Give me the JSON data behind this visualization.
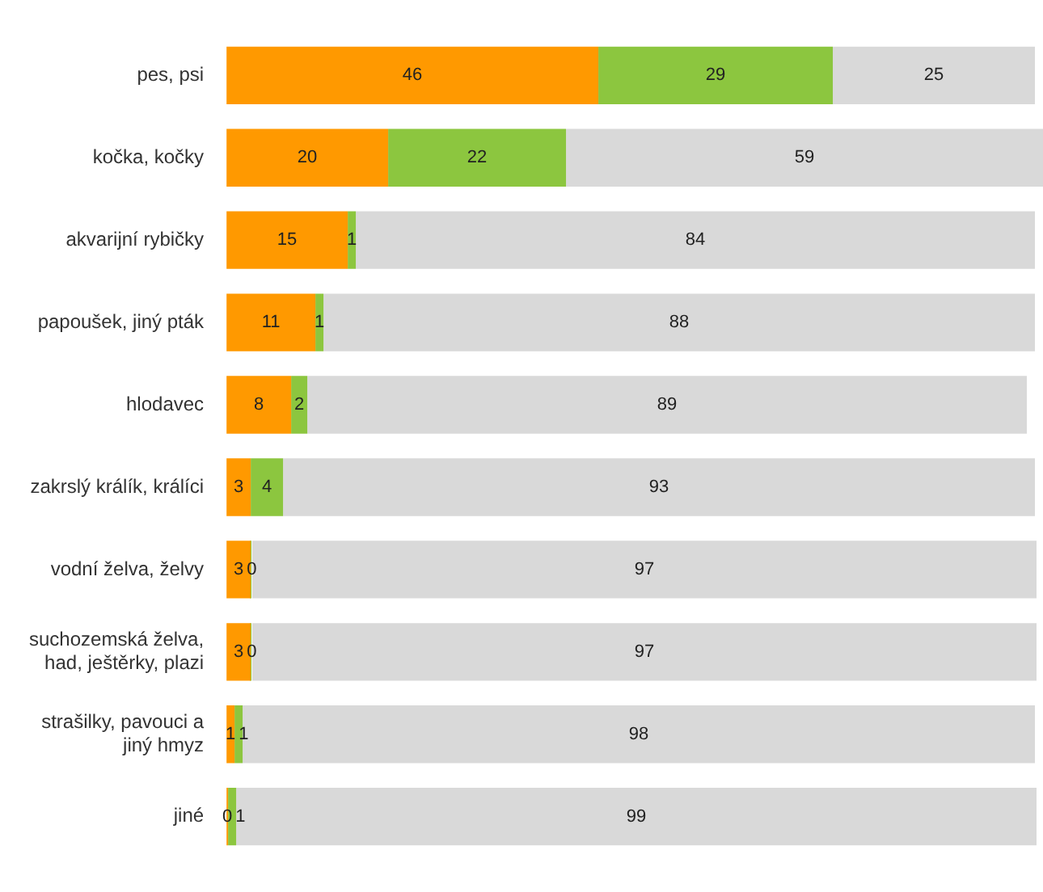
{
  "chart_data": {
    "type": "bar",
    "orientation": "horizontal",
    "stacked": true,
    "data_labels": true,
    "tick_labels": "y",
    "grid": false,
    "legend": false,
    "xlim": [
      0,
      101
    ],
    "categories": [
      "pes, psi",
      "kočka, kočky",
      "akvarijní rybičky",
      "papoušek, jiný pták",
      "hlodavec",
      "zakrslý králík, králíci",
      "vodní želva, želvy",
      "suchozemská želva,\nhad, ještěrky, plazi",
      "strašilky, pavouci a\njiný hmyz",
      "jiné"
    ],
    "series": [
      {
        "color": "#ff9900",
        "values": [
          46,
          20,
          15,
          11,
          8,
          3,
          3,
          3,
          1,
          0
        ]
      },
      {
        "color": "#8cc63f",
        "values": [
          29,
          22,
          1,
          1,
          2,
          4,
          0,
          0,
          1,
          1
        ]
      },
      {
        "color": "#d9d9d9",
        "values": [
          25,
          59,
          84,
          88,
          89,
          93,
          97,
          97,
          98,
          99
        ]
      }
    ]
  }
}
